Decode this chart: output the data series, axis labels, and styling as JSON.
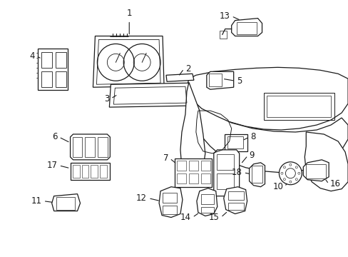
{
  "background_color": "#ffffff",
  "line_color": "#1a1a1a",
  "fig_width": 4.89,
  "fig_height": 3.6,
  "dpi": 100,
  "label_fs": 8.5,
  "lw": 0.9
}
